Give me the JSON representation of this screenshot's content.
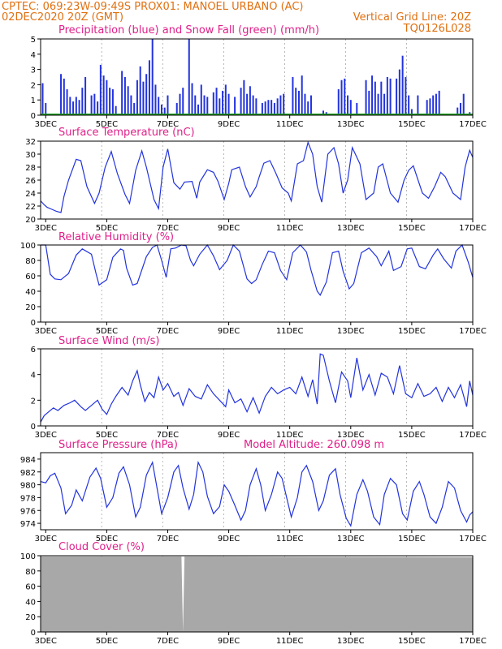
{
  "header": {
    "line1_left": "CPTEC:   069:23W-09:49S   PROX01: MANOEL URBANO (AC)",
    "line2_left": "02DEC2020 20Z (GMT)",
    "line2_right": "Vertical Grid Line: 20Z",
    "line3_right": "TQ0126L028"
  },
  "colors": {
    "header": "#e07010",
    "title": "#e0208a",
    "line": "#2233dd",
    "snow": "#20a020",
    "cloud": "#a8a8a8",
    "arrow": "#000000"
  },
  "x_axis": {
    "labels": [
      "3DEC",
      "5DEC",
      "7DEC",
      "9DEC",
      "11DEC",
      "13DEC",
      "15DEC",
      "17DEC"
    ],
    "label_days": [
      3,
      5,
      7,
      9,
      11,
      13,
      15,
      17
    ],
    "start_day": 2.833,
    "end_day": 17.0,
    "grid_hour": "20Z"
  },
  "chart_data": [
    {
      "type": "bar",
      "title": "Precipitation (blue) and Snow Fall (green) (mm/h)",
      "ylim": [
        0,
        5
      ],
      "yticks": [
        0,
        1,
        2,
        3,
        4,
        5
      ],
      "series": [
        {
          "name": "Precipitation",
          "x": [
            2.9,
            3.0,
            3.5,
            3.6,
            3.7,
            3.8,
            3.9,
            4.0,
            4.1,
            4.2,
            4.3,
            4.5,
            4.6,
            4.7,
            4.8,
            4.9,
            5.0,
            5.1,
            5.2,
            5.3,
            5.5,
            5.6,
            5.7,
            5.8,
            5.9,
            6.0,
            6.1,
            6.2,
            6.3,
            6.4,
            6.5,
            6.6,
            6.7,
            6.8,
            6.9,
            7.0,
            7.3,
            7.4,
            7.5,
            7.7,
            7.8,
            7.9,
            8.0,
            8.1,
            8.2,
            8.3,
            8.5,
            8.6,
            8.7,
            8.8,
            8.9,
            9.0,
            9.2,
            9.4,
            9.5,
            9.6,
            9.7,
            9.8,
            9.9,
            10.1,
            10.2,
            10.3,
            10.4,
            10.5,
            10.6,
            10.7,
            10.8,
            11.1,
            11.2,
            11.3,
            11.4,
            11.5,
            11.6,
            11.7,
            12.1,
            12.2,
            12.6,
            12.7,
            12.8,
            12.9,
            13.0,
            13.2,
            13.5,
            13.6,
            13.7,
            13.8,
            13.9,
            14.0,
            14.1,
            14.2,
            14.3,
            14.5,
            14.6,
            14.7,
            14.8,
            14.9,
            15.0,
            15.2,
            15.5,
            15.6,
            15.7,
            15.8,
            15.9,
            16.5,
            16.6,
            16.7,
            16.9
          ],
          "values": [
            2.1,
            0.8,
            2.7,
            2.4,
            1.7,
            1.2,
            0.9,
            1.2,
            1.0,
            1.8,
            2.5,
            1.3,
            1.4,
            0.9,
            3.3,
            2.6,
            2.3,
            1.8,
            1.7,
            0.6,
            2.9,
            2.5,
            1.9,
            1.3,
            0.8,
            2.3,
            3.2,
            2.2,
            2.7,
            3.6,
            5.0,
            2.0,
            1.2,
            0.7,
            0.5,
            1.3,
            0.8,
            1.4,
            1.8,
            5.0,
            2.1,
            1.3,
            0.7,
            2.0,
            1.3,
            1.2,
            1.5,
            1.8,
            1.1,
            1.6,
            2.0,
            1.4,
            1.2,
            1.8,
            2.3,
            1.4,
            1.9,
            1.3,
            1.1,
            0.8,
            0.9,
            1.0,
            1.0,
            0.8,
            1.1,
            1.3,
            1.4,
            2.5,
            1.8,
            1.6,
            2.6,
            1.4,
            0.9,
            1.3,
            0.3,
            0.2,
            1.7,
            2.3,
            2.4,
            1.3,
            1.0,
            0.8,
            2.3,
            1.6,
            2.6,
            2.2,
            1.4,
            2.2,
            1.4,
            2.5,
            2.4,
            2.4,
            3.0,
            3.9,
            2.5,
            1.3,
            0.4,
            1.3,
            1.0,
            1.1,
            1.3,
            1.4,
            1.6,
            0.5,
            0.8,
            1.4,
            0.2
          ]
        },
        {
          "name": "Snow Fall",
          "x": [
            2.833,
            17.0
          ],
          "values": [
            0,
            0
          ]
        }
      ]
    },
    {
      "type": "line",
      "title": "Surface Temperature (nC)",
      "ylim": [
        20,
        32
      ],
      "yticks": [
        20,
        22,
        24,
        26,
        28,
        30,
        32
      ],
      "x": [
        2.833,
        2.95,
        3.05,
        3.2,
        3.35,
        3.5,
        3.6,
        3.75,
        4.0,
        4.15,
        4.35,
        4.6,
        4.75,
        4.95,
        5.15,
        5.35,
        5.6,
        5.75,
        5.95,
        6.15,
        6.3,
        6.55,
        6.7,
        6.85,
        7.0,
        7.2,
        7.4,
        7.55,
        7.8,
        7.95,
        8.05,
        8.3,
        8.5,
        8.65,
        8.85,
        9.0,
        9.1,
        9.35,
        9.55,
        9.7,
        9.9,
        10.0,
        10.15,
        10.35,
        10.55,
        10.75,
        10.95,
        11.05,
        11.25,
        11.45,
        11.6,
        11.75,
        11.9,
        12.05,
        12.25,
        12.45,
        12.6,
        12.75,
        12.9,
        13.05,
        13.3,
        13.5,
        13.75,
        13.9,
        14.05,
        14.3,
        14.55,
        14.75,
        14.9,
        15.05,
        15.35,
        15.55,
        15.75,
        15.95,
        16.1,
        16.35,
        16.6,
        16.75,
        16.9,
        17.0
      ],
      "values": [
        22.8,
        22.2,
        21.8,
        21.5,
        21.2,
        21.0,
        23.5,
        26.0,
        29.2,
        29.0,
        25.0,
        22.4,
        24.0,
        28.0,
        30.4,
        27.0,
        23.8,
        22.4,
        27.5,
        30.5,
        28.0,
        23.0,
        21.6,
        28.0,
        30.8,
        25.6,
        24.6,
        25.7,
        25.8,
        23.2,
        25.7,
        27.6,
        27.2,
        25.8,
        23.0,
        25.5,
        27.6,
        28.0,
        25.0,
        23.4,
        25.0,
        26.5,
        28.6,
        29.0,
        27.0,
        24.8,
        24.0,
        22.8,
        28.5,
        29.0,
        31.8,
        30.0,
        25.0,
        22.6,
        30.0,
        31.0,
        28.5,
        24.0,
        26.0,
        31.0,
        28.5,
        23.0,
        24.0,
        28.0,
        28.5,
        24.0,
        22.6,
        26.0,
        27.5,
        28.2,
        24.0,
        23.2,
        25.0,
        27.2,
        26.5,
        24.0,
        23.0,
        28.0,
        30.6,
        29.5
      ]
    },
    {
      "type": "line",
      "title": "Relative Humidity (%)",
      "ylim": [
        0,
        100
      ],
      "yticks": [
        0,
        20,
        40,
        60,
        80,
        100
      ],
      "x": [
        2.833,
        3.0,
        3.15,
        3.3,
        3.5,
        3.75,
        4.0,
        4.2,
        4.5,
        4.65,
        4.75,
        5.0,
        5.2,
        5.45,
        5.55,
        5.65,
        5.85,
        6.0,
        6.3,
        6.5,
        6.65,
        6.8,
        6.95,
        7.1,
        7.25,
        7.45,
        7.6,
        7.75,
        7.85,
        8.05,
        8.3,
        8.5,
        8.7,
        8.95,
        9.15,
        9.35,
        9.6,
        9.75,
        9.9,
        10.1,
        10.3,
        10.5,
        10.7,
        10.9,
        11.1,
        11.35,
        11.55,
        11.7,
        11.9,
        12.0,
        12.2,
        12.4,
        12.6,
        12.75,
        12.95,
        13.1,
        13.35,
        13.6,
        13.85,
        14.0,
        14.25,
        14.4,
        14.65,
        14.85,
        15.0,
        15.25,
        15.45,
        15.7,
        15.85,
        16.05,
        16.3,
        16.45,
        16.65,
        16.85,
        17.0
      ],
      "values": [
        100,
        100,
        62,
        56,
        55,
        63,
        87,
        95,
        88,
        63,
        48,
        55,
        84,
        95,
        93,
        70,
        48,
        50,
        85,
        97,
        100,
        80,
        58,
        95,
        96,
        100,
        99,
        80,
        73,
        88,
        100,
        86,
        68,
        80,
        100,
        92,
        56,
        50,
        55,
        75,
        92,
        90,
        67,
        55,
        90,
        100,
        91,
        67,
        40,
        35,
        52,
        90,
        92,
        66,
        43,
        50,
        90,
        96,
        85,
        73,
        92,
        67,
        72,
        95,
        96,
        72,
        69,
        87,
        95,
        82,
        70,
        92,
        100,
        78,
        58
      ]
    },
    {
      "type": "line",
      "title": "Surface Wind (m/s)",
      "ylim": [
        0,
        6
      ],
      "yticks": [
        0,
        2,
        4,
        6
      ],
      "x": [
        2.833,
        2.95,
        3.1,
        3.25,
        3.4,
        3.6,
        3.8,
        3.95,
        4.15,
        4.3,
        4.5,
        4.7,
        4.85,
        5.0,
        5.15,
        5.3,
        5.5,
        5.7,
        5.85,
        6.0,
        6.1,
        6.25,
        6.4,
        6.55,
        6.7,
        6.85,
        7.0,
        7.2,
        7.35,
        7.5,
        7.7,
        7.9,
        8.1,
        8.3,
        8.5,
        8.7,
        8.9,
        9.0,
        9.2,
        9.4,
        9.6,
        9.8,
        10.0,
        10.2,
        10.4,
        10.6,
        10.8,
        11.0,
        11.2,
        11.4,
        11.6,
        11.75,
        11.9,
        12.0,
        12.1,
        12.3,
        12.5,
        12.7,
        12.9,
        13.0,
        13.2,
        13.4,
        13.6,
        13.8,
        14.0,
        14.2,
        14.4,
        14.6,
        14.8,
        15.0,
        15.2,
        15.4,
        15.6,
        15.8,
        16.0,
        16.2,
        16.4,
        16.6,
        16.8,
        16.9,
        17.0
      ],
      "values": [
        0.3,
        0.8,
        1.1,
        1.4,
        1.2,
        1.6,
        1.8,
        2.0,
        1.5,
        1.2,
        1.6,
        2.0,
        1.3,
        0.9,
        1.7,
        2.3,
        3.0,
        2.4,
        3.5,
        4.3,
        3.2,
        1.9,
        2.6,
        2.2,
        3.8,
        2.8,
        3.3,
        2.3,
        2.6,
        1.6,
        2.9,
        2.3,
        2.1,
        3.2,
        2.5,
        2.0,
        1.5,
        2.8,
        1.8,
        2.1,
        1.1,
        2.2,
        1.0,
        2.3,
        3.0,
        2.5,
        2.8,
        3.0,
        2.5,
        3.8,
        2.3,
        3.6,
        1.7,
        5.6,
        5.5,
        3.5,
        1.8,
        4.2,
        3.5,
        2.2,
        5.3,
        2.8,
        4.0,
        2.4,
        4.1,
        3.8,
        2.5,
        4.7,
        2.5,
        2.2,
        3.3,
        2.3,
        2.5,
        3.0,
        1.9,
        3.0,
        2.2,
        3.2,
        1.5,
        3.5,
        2.4
      ]
    },
    {
      "type": "line",
      "title": "Surface Pressure (hPa)",
      "subtitle": "Model Altitude: 260.098 m",
      "ylim": [
        973,
        985
      ],
      "yticks": [
        974,
        976,
        978,
        980,
        982,
        984
      ],
      "x": [
        2.833,
        3.0,
        3.15,
        3.3,
        3.5,
        3.65,
        3.85,
        4.0,
        4.2,
        4.45,
        4.65,
        4.8,
        5.0,
        5.2,
        5.4,
        5.55,
        5.75,
        5.95,
        6.1,
        6.3,
        6.5,
        6.65,
        6.8,
        7.0,
        7.2,
        7.35,
        7.5,
        7.7,
        7.85,
        8.0,
        8.15,
        8.3,
        8.5,
        8.7,
        8.85,
        9.0,
        9.2,
        9.4,
        9.55,
        9.7,
        9.9,
        10.05,
        10.2,
        10.4,
        10.6,
        10.75,
        10.9,
        11.05,
        11.25,
        11.4,
        11.55,
        11.75,
        11.95,
        12.1,
        12.3,
        12.5,
        12.65,
        12.85,
        13.0,
        13.2,
        13.4,
        13.55,
        13.75,
        13.95,
        14.1,
        14.3,
        14.5,
        14.7,
        14.85,
        15.05,
        15.25,
        15.4,
        15.6,
        15.8,
        16.0,
        16.2,
        16.4,
        16.6,
        16.8,
        16.9,
        17.0
      ],
      "values": [
        980.5,
        980.3,
        981.4,
        981.8,
        979.5,
        975.5,
        976.8,
        979.2,
        977.5,
        981.2,
        982.6,
        981.0,
        976.5,
        978.0,
        981.8,
        982.8,
        980.0,
        975.0,
        976.5,
        981.5,
        983.5,
        979.5,
        975.5,
        978.0,
        982.0,
        983.0,
        979.5,
        976.2,
        978.5,
        983.5,
        982.0,
        978.2,
        975.5,
        976.6,
        980.0,
        979.0,
        976.8,
        974.5,
        976.0,
        980.0,
        982.5,
        980.0,
        976.0,
        978.5,
        982.0,
        981.0,
        978.0,
        975.0,
        978.0,
        982.0,
        983.0,
        980.5,
        976.0,
        977.5,
        981.5,
        982.5,
        978.5,
        974.8,
        973.6,
        978.5,
        980.8,
        979.0,
        975.0,
        973.8,
        978.5,
        981.0,
        980.0,
        975.5,
        974.5,
        979.0,
        980.5,
        978.5,
        975.0,
        974.0,
        976.5,
        980.5,
        979.5,
        976.0,
        974.2,
        975.3,
        975.8
      ]
    },
    {
      "type": "area",
      "title": "Cloud Cover (%)",
      "ylim": [
        0,
        100
      ],
      "yticks": [
        0,
        20,
        40,
        60,
        80,
        100
      ],
      "x": [
        2.833,
        7.45,
        7.5,
        7.55,
        17.0
      ],
      "values": [
        99,
        99,
        0,
        99,
        98
      ]
    }
  ]
}
